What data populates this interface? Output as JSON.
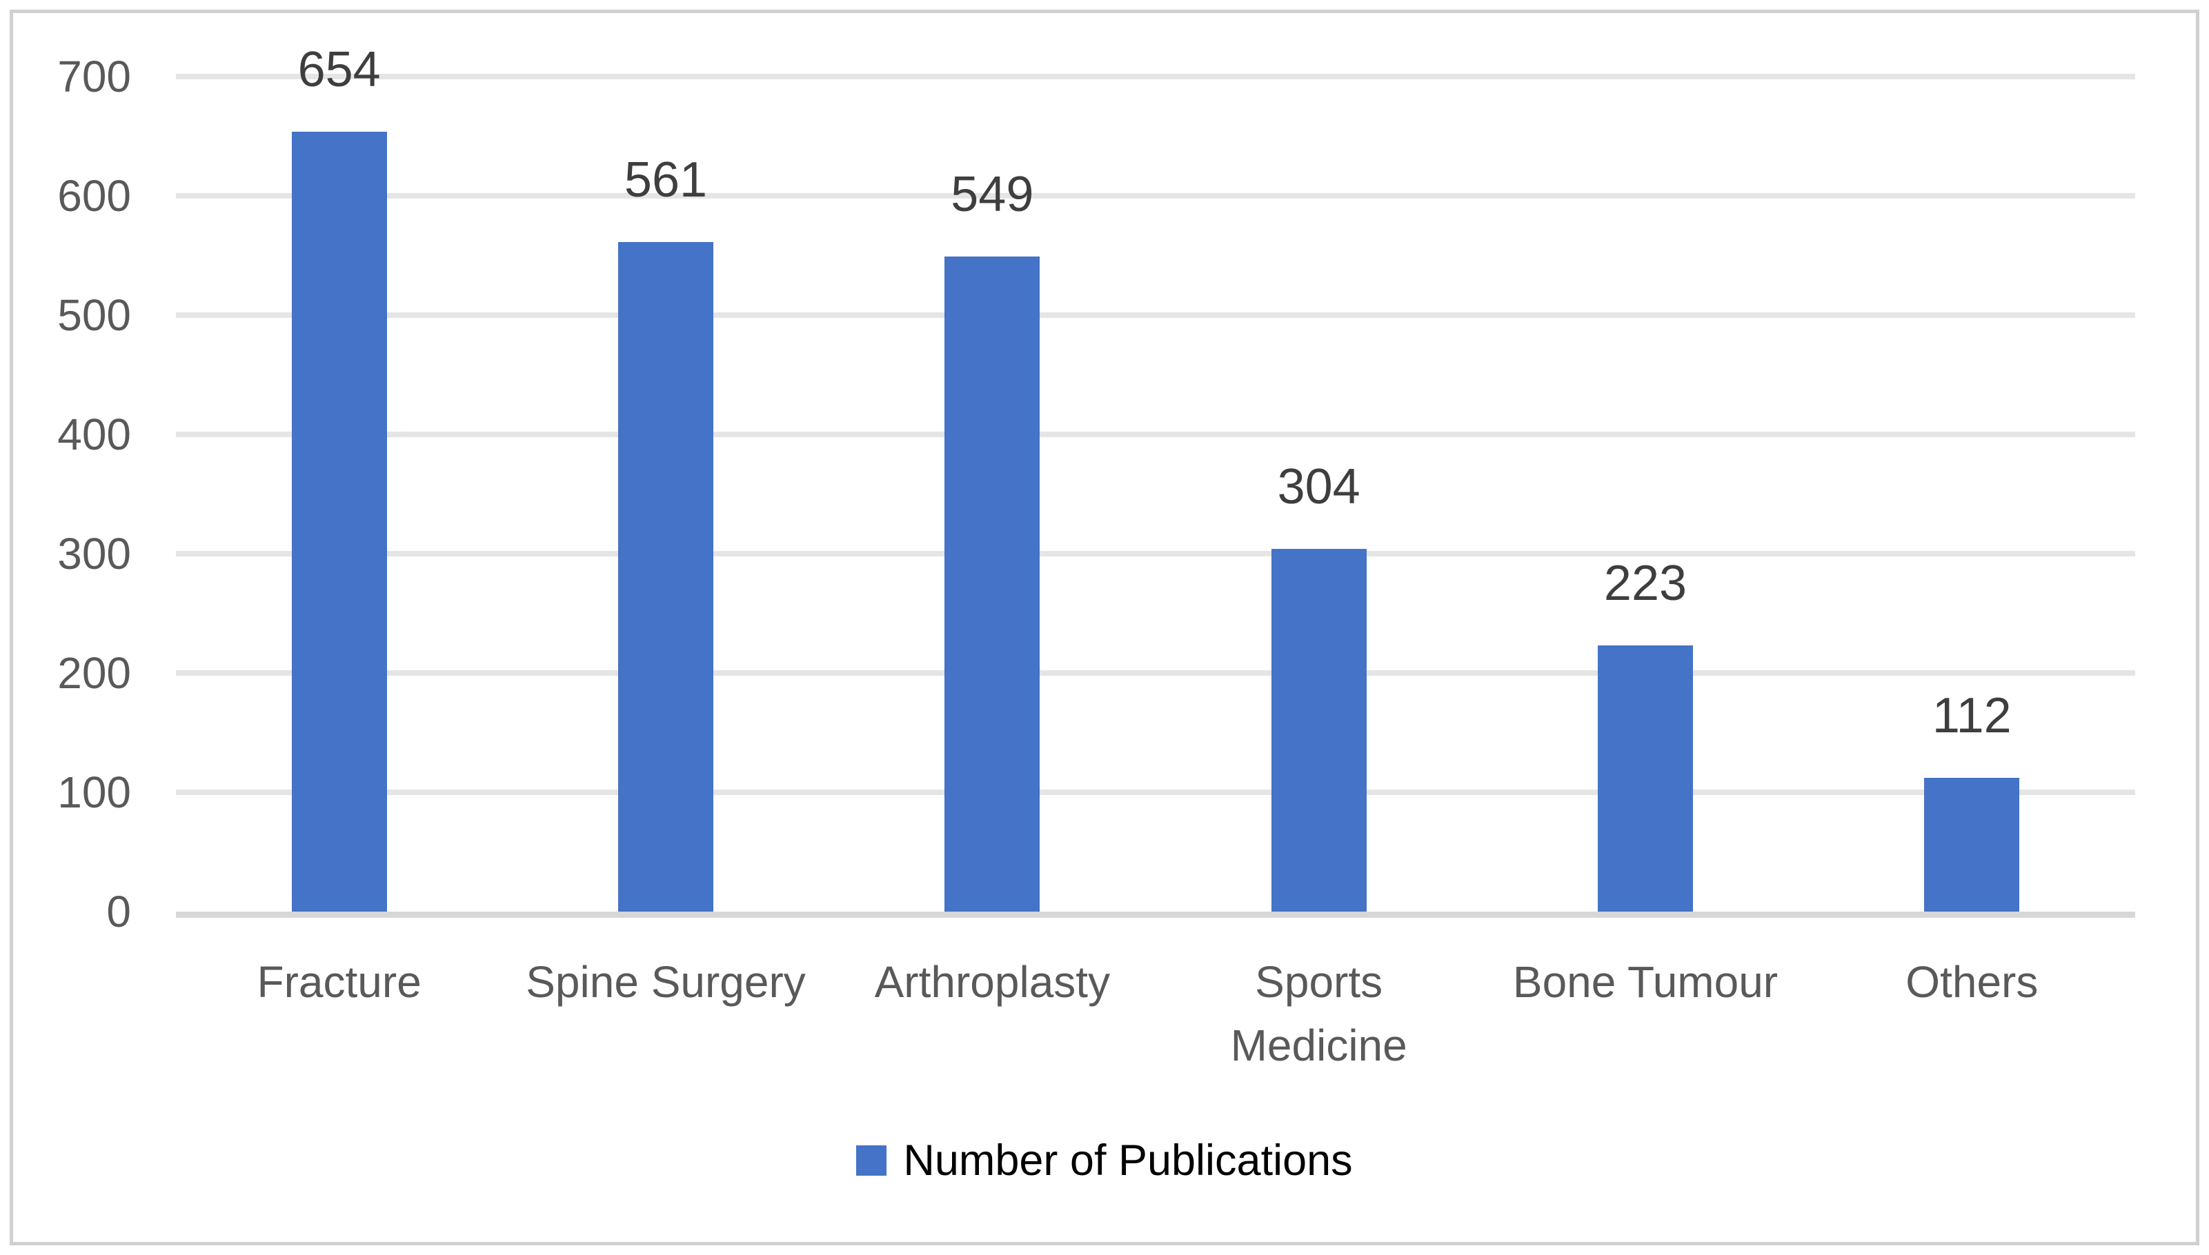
{
  "window": {
    "background_color": "#ffffff",
    "frame_border_color": "#d1cfcf"
  },
  "chart_data": {
    "type": "bar",
    "title": "",
    "xlabel": "",
    "ylabel": "",
    "categories": [
      "Fracture",
      "Spine Surgery",
      "Arthroplasty",
      "Sports Medicine",
      "Bone Tumour",
      "Others"
    ],
    "category_label_lines": [
      [
        "Fracture"
      ],
      [
        "Spine Surgery"
      ],
      [
        "Arthroplasty"
      ],
      [
        "Sports",
        "Medicine"
      ],
      [
        "Bone Tumour"
      ],
      [
        "Others"
      ]
    ],
    "values": [
      654,
      561,
      549,
      304,
      223,
      112
    ],
    "data_labels": [
      "654",
      "561",
      "549",
      "304",
      "223",
      "112"
    ],
    "series": [
      {
        "name": "Number of Publications",
        "color": "#4473C7",
        "values": [
          654,
          561,
          549,
          304,
          223,
          112
        ]
      }
    ],
    "ylim": [
      0,
      700
    ],
    "yticks": [
      0,
      100,
      200,
      300,
      400,
      500,
      600,
      700
    ],
    "ytick_labels": [
      "0",
      "100",
      "200",
      "300",
      "400",
      "500",
      "600",
      "700"
    ],
    "grid": true,
    "gridline_color": "#e5e5e5",
    "axis_line_color": "#d7d7d7",
    "bar_color": "#4473C7",
    "tick_text_color": "#595959",
    "category_text_color": "#595959",
    "data_label_color": "#3e3e3e",
    "legend_position": "bottom",
    "legend": {
      "label": "Number of Publications",
      "swatch_color": "#4473C7"
    }
  }
}
